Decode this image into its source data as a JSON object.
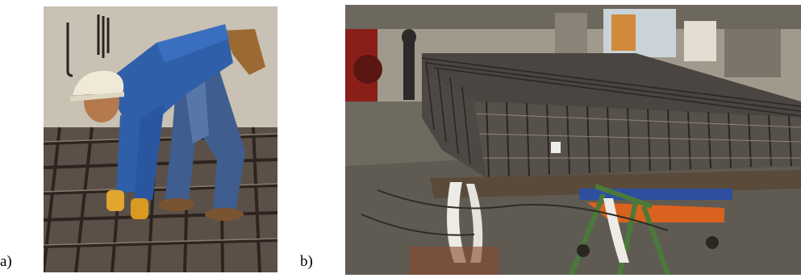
{
  "figure": {
    "panels": [
      {
        "label": "a)",
        "subject": "worker-tying-rebar-mat"
      },
      {
        "label": "b)",
        "subject": "prefabricated-rebar-cage-workshop"
      }
    ]
  },
  "colors": {
    "concrete": "#b9b3a7",
    "rebar": "#3a2e28",
    "jacket": "#2f5fa8",
    "helmet": "#efe9d6",
    "workshop_floor": "#6e6a60",
    "steel_beam": "#5a4a3a",
    "orange_lift": "#d9621e",
    "blue_lift": "#2c4fa0",
    "green_stand": "#4a7a3a"
  }
}
